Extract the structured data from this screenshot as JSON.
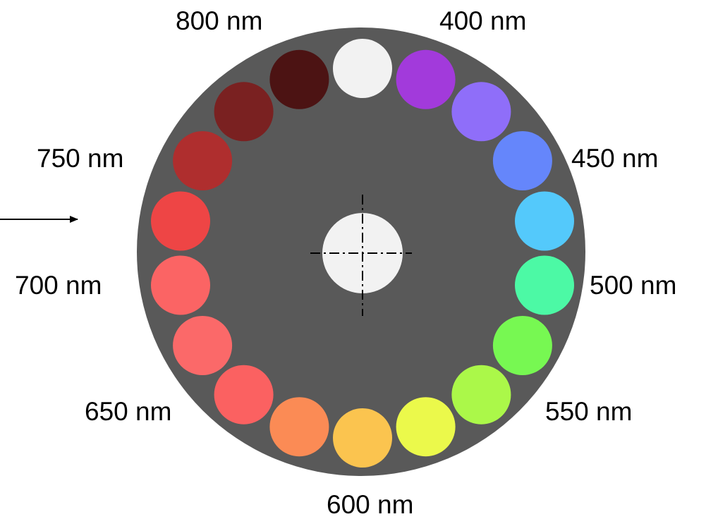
{
  "wheel": {
    "disc_color": "#595959",
    "center_hole_color": "#f2f2f2",
    "filters": [
      {
        "color": "#f2f2f2"
      },
      {
        "color": "#a23adb"
      },
      {
        "color": "#8f6ef9"
      },
      {
        "color": "#6586fb"
      },
      {
        "color": "#54c9fb"
      },
      {
        "color": "#4cf9a5"
      },
      {
        "color": "#77f852"
      },
      {
        "color": "#abf849"
      },
      {
        "color": "#ebf94b"
      },
      {
        "color": "#fbc44f"
      },
      {
        "color": "#fb8b55"
      },
      {
        "color": "#fb6161"
      },
      {
        "color": "#fb6969"
      },
      {
        "color": "#fb6464"
      },
      {
        "color": "#ee4545"
      },
      {
        "color": "#af2e2e"
      },
      {
        "color": "#7a2121"
      },
      {
        "color": "#4c1313"
      }
    ]
  },
  "labels": {
    "nm400": "400 nm",
    "nm450": "450 nm",
    "nm500": "500 nm",
    "nm550": "550 nm",
    "nm600": "600 nm",
    "nm650": "650 nm",
    "nm700": "700 nm",
    "nm750": "750 nm",
    "nm800": "800 nm"
  }
}
